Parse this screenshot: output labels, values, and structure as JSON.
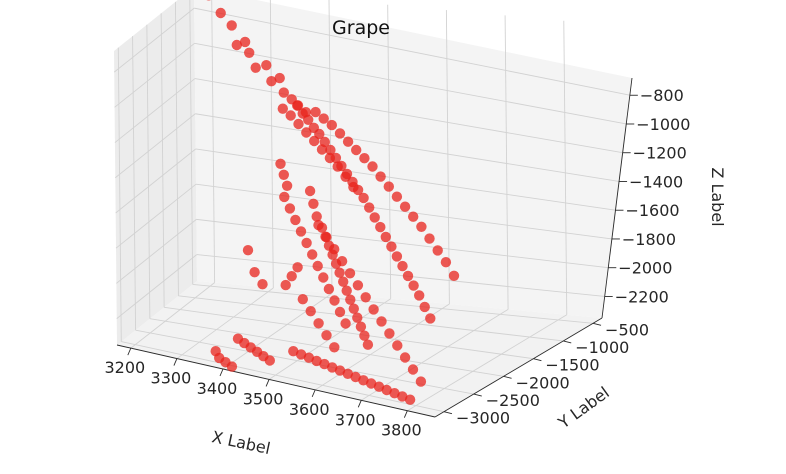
{
  "chart_data": {
    "type": "scatter",
    "projection": "3d",
    "title": "Grape",
    "xlabel": "X Label",
    "ylabel": "Y Label",
    "zlabel": "Z Label",
    "xticks": [
      "3200",
      "3300",
      "3400",
      "3500",
      "3600",
      "3700",
      "3800"
    ],
    "yticks": [
      "−3000",
      "−2500",
      "−2000",
      "−1500",
      "−1000",
      "−500"
    ],
    "zticks": [
      "−2200",
      "−2000",
      "−1800",
      "−1600",
      "−1400",
      "−1200",
      "−1000",
      "−800"
    ],
    "xlim": [
      3170,
      3860
    ],
    "ylim": [
      -3150,
      -350
    ],
    "zlim": [
      -2350,
      -680
    ],
    "grid": true,
    "marker_color": "#e8231c",
    "points": [
      [
        3205,
        -400,
        -700
      ],
      [
        3240,
        -550,
        -760
      ],
      [
        3270,
        -650,
        -800
      ],
      [
        3290,
        -800,
        -880
      ],
      [
        3305,
        -750,
        -860
      ],
      [
        3320,
        -850,
        -900
      ],
      [
        3340,
        -950,
        -960
      ],
      [
        3360,
        -900,
        -940
      ],
      [
        3380,
        -1050,
        -1000
      ],
      [
        3395,
        -1000,
        -980
      ],
      [
        3410,
        -1100,
        -1040
      ],
      [
        3430,
        -1150,
        -1060
      ],
      [
        3445,
        -1200,
        -1080
      ],
      [
        3460,
        -1250,
        -1110
      ],
      [
        3475,
        -1300,
        -1130
      ],
      [
        3490,
        -1350,
        -1160
      ],
      [
        3505,
        -1400,
        -1180
      ],
      [
        3520,
        -1450,
        -1210
      ],
      [
        3535,
        -1500,
        -1240
      ],
      [
        3550,
        -1550,
        -1270
      ],
      [
        3565,
        -1600,
        -1300
      ],
      [
        3580,
        -1650,
        -1330
      ],
      [
        3595,
        -1700,
        -1360
      ],
      [
        3610,
        -1750,
        -1390
      ],
      [
        3625,
        -1800,
        -1420
      ],
      [
        3640,
        -1850,
        -1460
      ],
      [
        3655,
        -1900,
        -1500
      ],
      [
        3670,
        -1950,
        -1540
      ],
      [
        3685,
        -2000,
        -1580
      ],
      [
        3700,
        -2050,
        -1620
      ],
      [
        3715,
        -2100,
        -1660
      ],
      [
        3730,
        -2150,
        -1700
      ],
      [
        3745,
        -2200,
        -1740
      ],
      [
        3760,
        -2250,
        -1780
      ],
      [
        3775,
        -2300,
        -1820
      ],
      [
        3790,
        -2350,
        -1870
      ],
      [
        3805,
        -2400,
        -1920
      ],
      [
        3420,
        -1300,
        -1100
      ],
      [
        3440,
        -1350,
        -1120
      ],
      [
        3460,
        -1400,
        -1150
      ],
      [
        3480,
        -1450,
        -1180
      ],
      [
        3500,
        -1500,
        -1210
      ],
      [
        3520,
        -1550,
        -1240
      ],
      [
        3540,
        -1600,
        -1270
      ],
      [
        3560,
        -1650,
        -1300
      ],
      [
        3580,
        -1700,
        -1340
      ],
      [
        3600,
        -1750,
        -1380
      ],
      [
        3450,
        -1250,
        -1070
      ],
      [
        3470,
        -1300,
        -1090
      ],
      [
        3490,
        -1280,
        -1080
      ],
      [
        3510,
        -1320,
        -1100
      ],
      [
        3530,
        -1360,
        -1120
      ],
      [
        3550,
        -1400,
        -1150
      ],
      [
        3570,
        -1440,
        -1180
      ],
      [
        3590,
        -1480,
        -1210
      ],
      [
        3610,
        -1520,
        -1240
      ],
      [
        3630,
        -1560,
        -1270
      ],
      [
        3650,
        -1600,
        -1310
      ],
      [
        3670,
        -1640,
        -1350
      ],
      [
        3690,
        -1680,
        -1390
      ],
      [
        3710,
        -1720,
        -1430
      ],
      [
        3730,
        -1760,
        -1470
      ],
      [
        3750,
        -1800,
        -1510
      ],
      [
        3770,
        -1840,
        -1560
      ],
      [
        3790,
        -1880,
        -1610
      ],
      [
        3810,
        -1920,
        -1660
      ],
      [
        3830,
        -1960,
        -1720
      ],
      [
        3490,
        -1500,
        -1500
      ],
      [
        3500,
        -1550,
        -1560
      ],
      [
        3510,
        -1600,
        -1620
      ],
      [
        3520,
        -1580,
        -1680
      ],
      [
        3530,
        -1620,
        -1720
      ],
      [
        3540,
        -1660,
        -1760
      ],
      [
        3550,
        -1700,
        -1800
      ],
      [
        3560,
        -1740,
        -1840
      ],
      [
        3570,
        -1780,
        -1880
      ],
      [
        3580,
        -1820,
        -1920
      ],
      [
        3590,
        -1860,
        -1960
      ],
      [
        3600,
        -1900,
        -2000
      ],
      [
        3610,
        -1940,
        -2040
      ],
      [
        3620,
        -1980,
        -2080
      ],
      [
        3630,
        -2020,
        -2120
      ],
      [
        3640,
        -2060,
        -2160
      ],
      [
        3650,
        -2100,
        -2200
      ],
      [
        3520,
        -1700,
        -1650
      ],
      [
        3540,
        -1750,
        -1700
      ],
      [
        3560,
        -1800,
        -1750
      ],
      [
        3580,
        -1850,
        -1800
      ],
      [
        3600,
        -1900,
        -1850
      ],
      [
        3620,
        -1950,
        -1900
      ],
      [
        3640,
        -2000,
        -1950
      ],
      [
        3660,
        -2050,
        -2000
      ],
      [
        3680,
        -2100,
        -2050
      ],
      [
        3700,
        -2150,
        -2100
      ],
      [
        3720,
        -2200,
        -2150
      ],
      [
        3740,
        -2250,
        -2200
      ],
      [
        3760,
        -2300,
        -2250
      ],
      [
        3780,
        -2350,
        -2300
      ],
      [
        3480,
        -1800,
        -1900
      ],
      [
        3470,
        -1850,
        -1950
      ],
      [
        3460,
        -1900,
        -2000
      ],
      [
        3500,
        -1950,
        -2050
      ],
      [
        3520,
        -2000,
        -2100
      ],
      [
        3540,
        -2050,
        -2150
      ],
      [
        3560,
        -2100,
        -2200
      ],
      [
        3580,
        -2150,
        -2250
      ],
      [
        3440,
        -1600,
        -1550
      ],
      [
        3455,
        -1650,
        -1600
      ],
      [
        3470,
        -1700,
        -1650
      ],
      [
        3485,
        -1750,
        -1700
      ],
      [
        3500,
        -1800,
        -1750
      ],
      [
        3515,
        -1850,
        -1800
      ],
      [
        3530,
        -1900,
        -1850
      ],
      [
        3545,
        -1950,
        -1900
      ],
      [
        3560,
        -2000,
        -1950
      ],
      [
        3575,
        -2050,
        -2000
      ],
      [
        3590,
        -2100,
        -2050
      ],
      [
        3605,
        -2150,
        -2100
      ],
      [
        3420,
        -1400,
        -1400
      ],
      [
        3430,
        -1450,
        -1450
      ],
      [
        3440,
        -1500,
        -1500
      ],
      [
        3360,
        -1600,
        -1900
      ],
      [
        3380,
        -1700,
        -2000
      ],
      [
        3400,
        -1750,
        -2050
      ],
      [
        3380,
        -2300,
        -2300
      ],
      [
        3400,
        -2400,
        -2300
      ],
      [
        3420,
        -2500,
        -2300
      ],
      [
        3440,
        -2600,
        -2300
      ],
      [
        3460,
        -2700,
        -2300
      ],
      [
        3480,
        -2800,
        -2300
      ],
      [
        3350,
        -2600,
        -2350
      ],
      [
        3370,
        -2800,
        -2350
      ],
      [
        3390,
        -2900,
        -2350
      ],
      [
        3410,
        -3000,
        -2350
      ],
      [
        3500,
        -2300,
        -2300
      ],
      [
        3520,
        -2350,
        -2300
      ],
      [
        3540,
        -2400,
        -2300
      ],
      [
        3560,
        -2450,
        -2300
      ],
      [
        3580,
        -2500,
        -2300
      ],
      [
        3600,
        -2550,
        -2300
      ],
      [
        3620,
        -2600,
        -2300
      ],
      [
        3640,
        -2650,
        -2300
      ],
      [
        3660,
        -2700,
        -2300
      ],
      [
        3680,
        -2750,
        -2300
      ],
      [
        3700,
        -2800,
        -2300
      ],
      [
        3720,
        -2850,
        -2300
      ],
      [
        3740,
        -2900,
        -2300
      ],
      [
        3760,
        -2950,
        -2300
      ],
      [
        3780,
        -3000,
        -2300
      ],
      [
        3800,
        -3050,
        -2300
      ]
    ]
  }
}
